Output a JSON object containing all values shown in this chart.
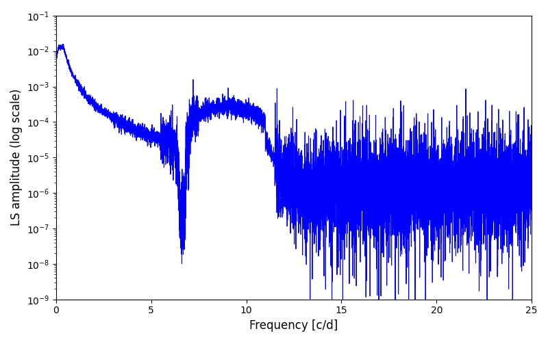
{
  "line_color": "#0000ff",
  "line_width": 0.8,
  "xlabel": "Frequency [c/d]",
  "ylabel": "LS amplitude (log scale)",
  "xlim": [
    0,
    25
  ],
  "ylim": [
    1e-09,
    0.1
  ],
  "yscale": "log",
  "figsize": [
    8.0,
    5.0
  ],
  "dpi": 100,
  "background_color": "#ffffff",
  "seed": 42,
  "n_points": 8000,
  "freq_max": 25.0
}
